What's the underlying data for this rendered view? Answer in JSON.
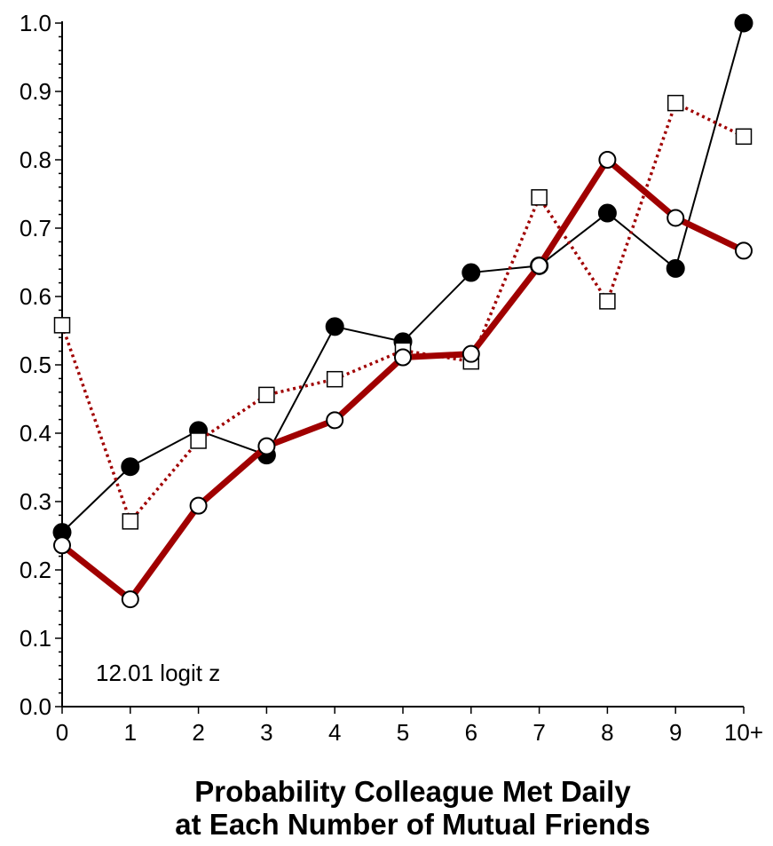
{
  "chart_data": {
    "type": "line",
    "title": "",
    "xlabel_lines": [
      "Probability Colleague Met Daily",
      "at Each Number of Mutual Friends"
    ],
    "ylabel": "",
    "categories": [
      "0",
      "1",
      "2",
      "3",
      "4",
      "5",
      "6",
      "7",
      "8",
      "9",
      "10+"
    ],
    "yticks": [
      "0.0",
      "0.1",
      "0.2",
      "0.3",
      "0.4",
      "0.5",
      "0.6",
      "0.7",
      "0.8",
      "0.9",
      "1.0"
    ],
    "ylim": [
      0,
      1
    ],
    "grid": false,
    "legend": "none",
    "annotation": "12.01 logit z",
    "series": [
      {
        "style": "black-thin-filled-circle",
        "color": "#000000",
        "values": [
          0.255,
          0.351,
          0.404,
          0.368,
          0.556,
          0.534,
          0.635,
          0.645,
          0.722,
          0.641,
          1.0
        ]
      },
      {
        "style": "darkred-dotted-open-square",
        "color": "#a00000",
        "values": [
          0.558,
          0.271,
          0.389,
          0.456,
          0.479,
          0.521,
          0.505,
          0.745,
          0.593,
          0.883,
          0.834
        ]
      },
      {
        "style": "darkred-thick-open-circle",
        "color": "#a00000",
        "values": [
          0.236,
          0.157,
          0.294,
          0.381,
          0.419,
          0.511,
          0.516,
          0.645,
          0.8,
          0.715,
          0.667
        ]
      }
    ]
  }
}
